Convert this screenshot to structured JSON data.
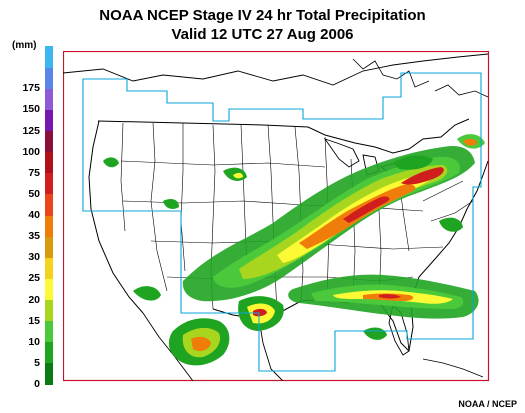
{
  "title": {
    "line1": "NOAA NCEP Stage IV 24 hr Total Precipitation",
    "line2": "Valid 12 UTC  27 Aug 2006"
  },
  "legend": {
    "unit": "(mm)",
    "ticks": [
      "0",
      "5",
      "10",
      "15",
      "20",
      "25",
      "30",
      "35",
      "40",
      "50",
      "75",
      "100",
      "125",
      "150",
      "175"
    ],
    "colors": [
      "#0a7a12",
      "#1fa421",
      "#4bc93a",
      "#a8d61e",
      "#fbfa34",
      "#f5d21b",
      "#d99a0d",
      "#f07c0a",
      "#e9461b",
      "#d01e1e",
      "#b0101a",
      "#8a0f3a",
      "#7418b0",
      "#8f5ad6",
      "#5a86ea",
      "#3bb6ee"
    ]
  },
  "map": {
    "frame_color": "#c8102e",
    "domain_color": "#0aa6d8",
    "coast_color": "#000000"
  },
  "credit": "NOAA / NCEP"
}
